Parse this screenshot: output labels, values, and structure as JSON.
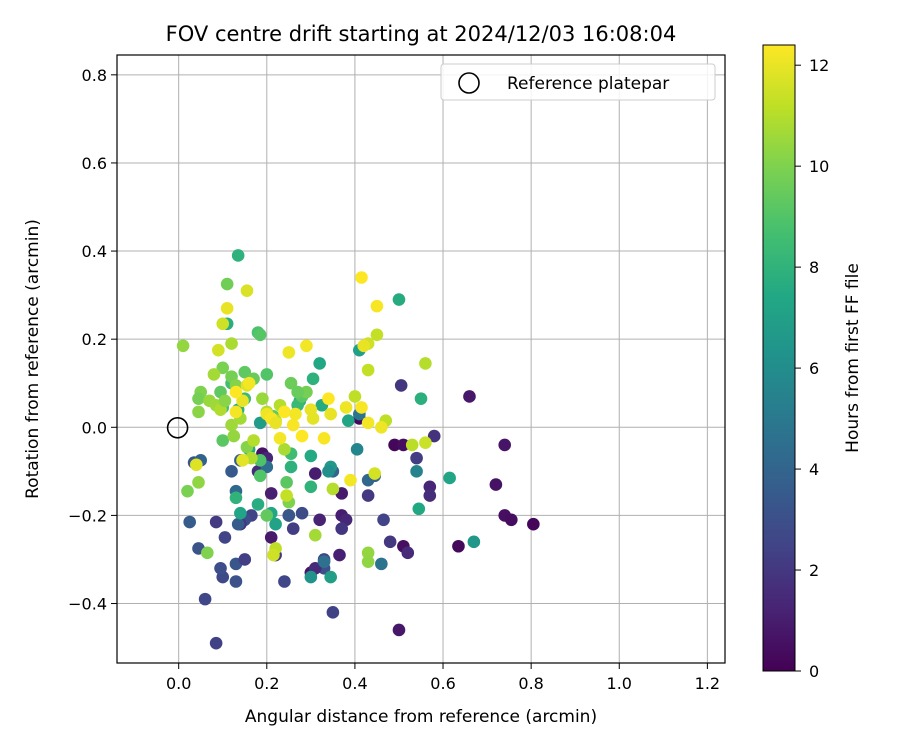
{
  "chart_data": {
    "type": "scatter",
    "title": "FOV centre drift starting at 2024/12/03 16:08:04",
    "xlabel": "Angular distance from reference (arcmin)",
    "ylabel": "Rotation from reference (arcmin)",
    "xlim": [
      -0.14,
      1.24
    ],
    "ylim": [
      -0.535,
      0.845
    ],
    "x_ticks": [
      0.0,
      0.2,
      0.4,
      0.6,
      0.8,
      1.0,
      1.2
    ],
    "x_tick_labels": [
      "0.0",
      "0.2",
      "0.4",
      "0.6",
      "0.8",
      "1.0",
      "1.2"
    ],
    "y_ticks": [
      -0.4,
      -0.2,
      0.0,
      0.2,
      0.4,
      0.6,
      0.8
    ],
    "y_tick_labels": [
      "−0.4",
      "−0.2",
      "0.0",
      "0.2",
      "0.4",
      "0.6",
      "0.8"
    ],
    "grid": true,
    "legend": {
      "placement": "top-right",
      "entries": [
        "Reference platepar"
      ]
    },
    "reference_point": {
      "x": 0.0,
      "y": 0.0,
      "label": "Reference platepar"
    },
    "colorbar": {
      "label": "Hours from first FF file",
      "colormap": "viridis",
      "range": [
        0,
        12.4
      ],
      "ticks": [
        0,
        2,
        4,
        6,
        8,
        10,
        12
      ],
      "tick_labels": [
        "0",
        "2",
        "4",
        "6",
        "8",
        "10",
        "12"
      ]
    },
    "points": [
      {
        "x": 0.41,
        "y": 0.02,
        "h": 0.3
      },
      {
        "x": 0.49,
        "y": -0.04,
        "h": 0.2
      },
      {
        "x": 0.51,
        "y": -0.04,
        "h": 0.4
      },
      {
        "x": 0.66,
        "y": 0.07,
        "h": 0.8
      },
      {
        "x": 0.72,
        "y": -0.13,
        "h": 0.6
      },
      {
        "x": 0.74,
        "y": -0.2,
        "h": 0.5
      },
      {
        "x": 0.755,
        "y": -0.21,
        "h": 0.4
      },
      {
        "x": 0.805,
        "y": -0.22,
        "h": 0.2
      },
      {
        "x": 0.74,
        "y": -0.04,
        "h": 0.7
      },
      {
        "x": 0.635,
        "y": -0.27,
        "h": 0.3
      },
      {
        "x": 0.5,
        "y": -0.46,
        "h": 0.8
      },
      {
        "x": 0.51,
        "y": -0.27,
        "h": 0.5
      },
      {
        "x": 0.52,
        "y": -0.285,
        "h": 1.5
      },
      {
        "x": 0.48,
        "y": -0.26,
        "h": 2.0
      },
      {
        "x": 0.58,
        "y": -0.02,
        "h": 1.8
      },
      {
        "x": 0.57,
        "y": -0.135,
        "h": 1.3
      },
      {
        "x": 0.57,
        "y": -0.155,
        "h": 1.6
      },
      {
        "x": 0.54,
        "y": -0.07,
        "h": 2.2
      },
      {
        "x": 0.505,
        "y": 0.095,
        "h": 1.9
      },
      {
        "x": 0.465,
        "y": -0.21,
        "h": 2.5
      },
      {
        "x": 0.43,
        "y": -0.155,
        "h": 2.1
      },
      {
        "x": 0.37,
        "y": -0.15,
        "h": 0.9
      },
      {
        "x": 0.37,
        "y": -0.2,
        "h": 1.0
      },
      {
        "x": 0.38,
        "y": -0.21,
        "h": 1.4
      },
      {
        "x": 0.37,
        "y": -0.23,
        "h": 1.9
      },
      {
        "x": 0.365,
        "y": -0.29,
        "h": 1.1
      },
      {
        "x": 0.35,
        "y": -0.42,
        "h": 2.4
      },
      {
        "x": 0.33,
        "y": -0.3,
        "h": 2.6
      },
      {
        "x": 0.33,
        "y": -0.32,
        "h": 3.0
      },
      {
        "x": 0.32,
        "y": -0.21,
        "h": 1.2
      },
      {
        "x": 0.31,
        "y": -0.105,
        "h": 1.0
      },
      {
        "x": 0.3,
        "y": -0.33,
        "h": 0.7
      },
      {
        "x": 0.31,
        "y": -0.32,
        "h": 1.5
      },
      {
        "x": 0.28,
        "y": -0.195,
        "h": 2.8
      },
      {
        "x": 0.26,
        "y": -0.23,
        "h": 2.2
      },
      {
        "x": 0.25,
        "y": -0.2,
        "h": 1.8
      },
      {
        "x": 0.24,
        "y": -0.35,
        "h": 2.6
      },
      {
        "x": 0.22,
        "y": -0.29,
        "h": 2.0
      },
      {
        "x": 0.21,
        "y": -0.25,
        "h": 0.9
      },
      {
        "x": 0.21,
        "y": -0.15,
        "h": 1.1
      },
      {
        "x": 0.19,
        "y": -0.06,
        "h": 0.6
      },
      {
        "x": 0.2,
        "y": -0.07,
        "h": 1.3
      },
      {
        "x": 0.18,
        "y": -0.1,
        "h": 1.6
      },
      {
        "x": 0.165,
        "y": -0.2,
        "h": 2.5
      },
      {
        "x": 0.15,
        "y": -0.21,
        "h": 2.9
      },
      {
        "x": 0.14,
        "y": -0.22,
        "h": 1.9
      },
      {
        "x": 0.13,
        "y": -0.35,
        "h": 3.1
      },
      {
        "x": 0.13,
        "y": -0.31,
        "h": 3.3
      },
      {
        "x": 0.15,
        "y": -0.3,
        "h": 2.3
      },
      {
        "x": 0.1,
        "y": -0.34,
        "h": 2.7
      },
      {
        "x": 0.095,
        "y": -0.32,
        "h": 3.0
      },
      {
        "x": 0.085,
        "y": -0.215,
        "h": 2.1
      },
      {
        "x": 0.085,
        "y": -0.49,
        "h": 2.4
      },
      {
        "x": 0.06,
        "y": -0.39,
        "h": 2.6
      },
      {
        "x": 0.045,
        "y": -0.275,
        "h": 3.2
      },
      {
        "x": 0.025,
        "y": -0.215,
        "h": 3.6
      },
      {
        "x": 0.035,
        "y": -0.08,
        "h": 3.4
      },
      {
        "x": 0.05,
        "y": -0.075,
        "h": 3.9
      },
      {
        "x": 0.105,
        "y": -0.25,
        "h": 2.5
      },
      {
        "x": 0.12,
        "y": -0.1,
        "h": 3.5
      },
      {
        "x": 0.13,
        "y": -0.145,
        "h": 4.2
      },
      {
        "x": 0.14,
        "y": -0.075,
        "h": 3.8
      },
      {
        "x": 0.135,
        "y": -0.22,
        "h": 3.6
      },
      {
        "x": 0.2,
        "y": -0.09,
        "h": 4.4
      },
      {
        "x": 0.25,
        "y": -0.2,
        "h": 3.3
      },
      {
        "x": 0.33,
        "y": -0.305,
        "h": 4.6
      },
      {
        "x": 0.35,
        "y": -0.1,
        "h": 4.0
      },
      {
        "x": 0.46,
        "y": -0.31,
        "h": 4.7
      },
      {
        "x": 0.43,
        "y": -0.12,
        "h": 4.1
      },
      {
        "x": 0.405,
        "y": -0.05,
        "h": 5.6
      },
      {
        "x": 0.54,
        "y": -0.1,
        "h": 5.5
      },
      {
        "x": 0.445,
        "y": -0.11,
        "h": 3.8
      },
      {
        "x": 0.41,
        "y": 0.03,
        "h": 4.8
      },
      {
        "x": 0.67,
        "y": -0.26,
        "h": 6.5
      },
      {
        "x": 0.615,
        "y": -0.115,
        "h": 7.2
      },
      {
        "x": 0.545,
        "y": -0.185,
        "h": 7.4
      },
      {
        "x": 0.55,
        "y": 0.065,
        "h": 7.8
      },
      {
        "x": 0.5,
        "y": 0.29,
        "h": 7.6
      },
      {
        "x": 0.41,
        "y": 0.175,
        "h": 7.0
      },
      {
        "x": 0.385,
        "y": 0.015,
        "h": 7.3
      },
      {
        "x": 0.345,
        "y": -0.09,
        "h": 6.6
      },
      {
        "x": 0.345,
        "y": -0.34,
        "h": 6.9
      },
      {
        "x": 0.3,
        "y": -0.34,
        "h": 6.3
      },
      {
        "x": 0.34,
        "y": -0.1,
        "h": 6.1
      },
      {
        "x": 0.32,
        "y": 0.145,
        "h": 7.4
      },
      {
        "x": 0.325,
        "y": 0.05,
        "h": 7.6
      },
      {
        "x": 0.305,
        "y": 0.11,
        "h": 7.9
      },
      {
        "x": 0.3,
        "y": -0.065,
        "h": 7.5
      },
      {
        "x": 0.3,
        "y": -0.135,
        "h": 8.0
      },
      {
        "x": 0.275,
        "y": 0.06,
        "h": 7.8
      },
      {
        "x": 0.27,
        "y": 0.05,
        "h": 8.3
      },
      {
        "x": 0.255,
        "y": -0.09,
        "h": 7.9
      },
      {
        "x": 0.255,
        "y": -0.06,
        "h": 8.5
      },
      {
        "x": 0.22,
        "y": -0.22,
        "h": 7.1
      },
      {
        "x": 0.21,
        "y": -0.195,
        "h": 7.4
      },
      {
        "x": 0.18,
        "y": -0.175,
        "h": 7.7
      },
      {
        "x": 0.185,
        "y": 0.01,
        "h": 6.8
      },
      {
        "x": 0.16,
        "y": -0.05,
        "h": 7.5
      },
      {
        "x": 0.14,
        "y": -0.195,
        "h": 7.2
      },
      {
        "x": 0.13,
        "y": -0.16,
        "h": 8.0
      },
      {
        "x": 0.135,
        "y": 0.04,
        "h": 7.8
      },
      {
        "x": 0.135,
        "y": 0.39,
        "h": 7.9
      },
      {
        "x": 0.11,
        "y": 0.235,
        "h": 7.7
      },
      {
        "x": 0.12,
        "y": 0.1,
        "h": 8.6
      },
      {
        "x": 0.15,
        "y": 0.065,
        "h": 8.4
      },
      {
        "x": 0.1,
        "y": 0.045,
        "h": 8.7
      },
      {
        "x": 0.185,
        "y": -0.075,
        "h": 8.9
      },
      {
        "x": 0.185,
        "y": -0.11,
        "h": 9.0
      },
      {
        "x": 0.245,
        "y": -0.125,
        "h": 9.2
      },
      {
        "x": 0.25,
        "y": -0.17,
        "h": 10.0
      },
      {
        "x": 0.2,
        "y": -0.2,
        "h": 9.4
      },
      {
        "x": 0.18,
        "y": 0.215,
        "h": 8.8
      },
      {
        "x": 0.185,
        "y": 0.21,
        "h": 9.1
      },
      {
        "x": 0.15,
        "y": 0.125,
        "h": 9.3
      },
      {
        "x": 0.17,
        "y": 0.11,
        "h": 9.5
      },
      {
        "x": 0.2,
        "y": 0.12,
        "h": 9.0
      },
      {
        "x": 0.215,
        "y": 0.025,
        "h": 9.4
      },
      {
        "x": 0.255,
        "y": 0.1,
        "h": 9.6
      },
      {
        "x": 0.28,
        "y": 0.07,
        "h": 9.2
      },
      {
        "x": 0.29,
        "y": 0.08,
        "h": 9.8
      },
      {
        "x": 0.27,
        "y": 0.08,
        "h": 9.5
      },
      {
        "x": 0.11,
        "y": 0.325,
        "h": 9.7
      },
      {
        "x": 0.12,
        "y": 0.115,
        "h": 9.8
      },
      {
        "x": 0.1,
        "y": 0.135,
        "h": 9.9
      },
      {
        "x": 0.095,
        "y": 0.08,
        "h": 9.3
      },
      {
        "x": 0.1,
        "y": -0.03,
        "h": 9.2
      },
      {
        "x": 0.13,
        "y": 0.095,
        "h": 10.1
      },
      {
        "x": 0.05,
        "y": 0.08,
        "h": 10.0
      },
      {
        "x": 0.045,
        "y": 0.065,
        "h": 9.8
      },
      {
        "x": 0.045,
        "y": 0.035,
        "h": 10.2
      },
      {
        "x": 0.065,
        "y": -0.285,
        "h": 10.0
      },
      {
        "x": 0.02,
        "y": -0.145,
        "h": 9.9
      },
      {
        "x": 0.045,
        "y": -0.125,
        "h": 10.3
      },
      {
        "x": 0.01,
        "y": 0.185,
        "h": 10.4
      },
      {
        "x": 0.07,
        "y": 0.06,
        "h": 10.5
      },
      {
        "x": 0.08,
        "y": 0.12,
        "h": 10.7
      },
      {
        "x": 0.085,
        "y": 0.05,
        "h": 10.6
      },
      {
        "x": 0.095,
        "y": 0.04,
        "h": 10.9
      },
      {
        "x": 0.105,
        "y": 0.06,
        "h": 10.2
      },
      {
        "x": 0.12,
        "y": 0.005,
        "h": 10.6
      },
      {
        "x": 0.12,
        "y": 0.19,
        "h": 10.8
      },
      {
        "x": 0.125,
        "y": -0.02,
        "h": 10.4
      },
      {
        "x": 0.14,
        "y": 0.02,
        "h": 10.7
      },
      {
        "x": 0.155,
        "y": -0.045,
        "h": 10.1
      },
      {
        "x": 0.165,
        "y": -0.07,
        "h": 10.9
      },
      {
        "x": 0.17,
        "y": -0.03,
        "h": 11.0
      },
      {
        "x": 0.19,
        "y": 0.065,
        "h": 10.5
      },
      {
        "x": 0.2,
        "y": 0.035,
        "h": 10.9
      },
      {
        "x": 0.22,
        "y": 0.015,
        "h": 11.1
      },
      {
        "x": 0.23,
        "y": 0.05,
        "h": 11.0
      },
      {
        "x": 0.24,
        "y": -0.05,
        "h": 10.8
      },
      {
        "x": 0.245,
        "y": -0.155,
        "h": 11.3
      },
      {
        "x": 0.22,
        "y": -0.275,
        "h": 11.2
      },
      {
        "x": 0.215,
        "y": -0.29,
        "h": 11.5
      },
      {
        "x": 0.31,
        "y": -0.245,
        "h": 10.7
      },
      {
        "x": 0.35,
        "y": -0.14,
        "h": 11.0
      },
      {
        "x": 0.4,
        "y": 0.07,
        "h": 11.2
      },
      {
        "x": 0.43,
        "y": -0.285,
        "h": 10.4
      },
      {
        "x": 0.43,
        "y": -0.305,
        "h": 10.3
      },
      {
        "x": 0.43,
        "y": 0.13,
        "h": 11.3
      },
      {
        "x": 0.43,
        "y": 0.19,
        "h": 11.5
      },
      {
        "x": 0.445,
        "y": -0.105,
        "h": 11.6
      },
      {
        "x": 0.47,
        "y": 0.015,
        "h": 11.2
      },
      {
        "x": 0.53,
        "y": -0.04,
        "h": 11.1
      },
      {
        "x": 0.56,
        "y": 0.145,
        "h": 11.0
      },
      {
        "x": 0.56,
        "y": -0.035,
        "h": 11.4
      },
      {
        "x": 0.45,
        "y": 0.21,
        "h": 11.3
      },
      {
        "x": 0.09,
        "y": 0.175,
        "h": 11.6
      },
      {
        "x": 0.1,
        "y": 0.235,
        "h": 11.5
      },
      {
        "x": 0.155,
        "y": 0.095,
        "h": 11.8
      },
      {
        "x": 0.155,
        "y": 0.31,
        "h": 11.7
      },
      {
        "x": 0.145,
        "y": -0.075,
        "h": 11.9
      },
      {
        "x": 0.04,
        "y": -0.085,
        "h": 11.8
      },
      {
        "x": 0.11,
        "y": 0.27,
        "h": 12.0
      },
      {
        "x": 0.13,
        "y": 0.035,
        "h": 12.2
      },
      {
        "x": 0.2,
        "y": 0.03,
        "h": 12.1
      },
      {
        "x": 0.21,
        "y": 0.02,
        "h": 12.3
      },
      {
        "x": 0.22,
        "y": 0.01,
        "h": 12.0
      },
      {
        "x": 0.23,
        "y": -0.025,
        "h": 12.2
      },
      {
        "x": 0.24,
        "y": 0.035,
        "h": 12.4
      },
      {
        "x": 0.25,
        "y": 0.17,
        "h": 12.1
      },
      {
        "x": 0.26,
        "y": 0.005,
        "h": 12.3
      },
      {
        "x": 0.265,
        "y": 0.03,
        "h": 12.2
      },
      {
        "x": 0.28,
        "y": -0.02,
        "h": 12.4
      },
      {
        "x": 0.29,
        "y": 0.185,
        "h": 12.2
      },
      {
        "x": 0.3,
        "y": 0.04,
        "h": 12.0
      },
      {
        "x": 0.33,
        "y": -0.025,
        "h": 12.3
      },
      {
        "x": 0.34,
        "y": 0.065,
        "h": 12.4
      },
      {
        "x": 0.38,
        "y": 0.045,
        "h": 12.1
      },
      {
        "x": 0.39,
        "y": -0.12,
        "h": 12.2
      },
      {
        "x": 0.415,
        "y": 0.045,
        "h": 12.3
      },
      {
        "x": 0.415,
        "y": 0.34,
        "h": 12.4
      },
      {
        "x": 0.42,
        "y": 0.185,
        "h": 12.0
      },
      {
        "x": 0.43,
        "y": 0.01,
        "h": 12.2
      },
      {
        "x": 0.45,
        "y": 0.275,
        "h": 12.3
      },
      {
        "x": 0.46,
        "y": 0.0,
        "h": 12.1
      },
      {
        "x": 0.345,
        "y": 0.03,
        "h": 12.0
      },
      {
        "x": 0.305,
        "y": 0.02,
        "h": 11.9
      },
      {
        "x": 0.16,
        "y": 0.1,
        "h": 12.2
      },
      {
        "x": 0.145,
        "y": 0.06,
        "h": 12.0
      },
      {
        "x": 0.13,
        "y": 0.08,
        "h": 12.4
      }
    ]
  }
}
